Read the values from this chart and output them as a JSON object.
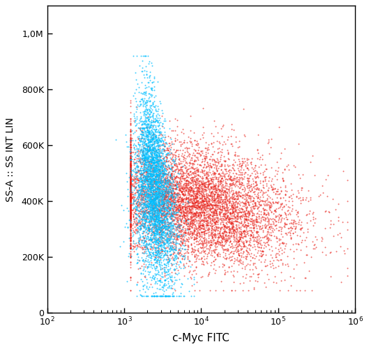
{
  "title": "",
  "xlabel": "c-Myc FITC",
  "ylabel": "SS-A :: SS INT LIN",
  "xlim": [
    100,
    1000000
  ],
  "ylim": [
    0,
    1100000
  ],
  "yticks": [
    0,
    200000,
    400000,
    600000,
    800000,
    1000000
  ],
  "ytick_labels": [
    "0",
    "200K",
    "400K",
    "600K",
    "800K",
    "1,0M"
  ],
  "cyan_color": "#00BFFF",
  "red_color": "#E8221A",
  "background_color": "#FFFFFF",
  "cyan_n": 4000,
  "red_n": 7000,
  "seed": 99
}
